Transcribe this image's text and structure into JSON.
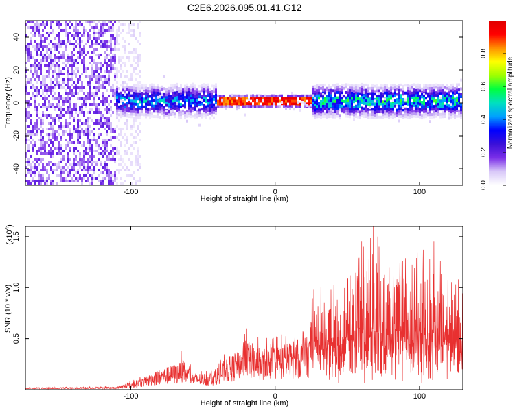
{
  "figure_title": "C2E6.2026.095.01.41.G12",
  "chart_data": [
    {
      "type": "heatmap",
      "title": "C2E6.2026.095.01.41.G12",
      "xlabel": "Height of straight line (km)",
      "ylabel": "Frequency (Hz)",
      "xlim": [
        -173,
        130
      ],
      "ylim": [
        -50,
        50
      ],
      "xticks": [
        -100,
        0,
        100
      ],
      "yticks": [
        -40,
        -20,
        0,
        20,
        40
      ],
      "xtick_labels": [
        "-100",
        "0",
        "100"
      ],
      "ytick_labels": [
        "-40",
        "-20",
        "0",
        "20",
        "40"
      ],
      "colorbar": {
        "label": "Normalized spectral amplitude",
        "range": [
          0.0,
          1.0
        ],
        "ticks": [
          0.0,
          0.2,
          0.4,
          0.6,
          0.8
        ],
        "tick_labels": [
          "0.0",
          "0.2",
          "0.4",
          "0.6",
          "0.8"
        ],
        "colormap": [
          "#ffffff",
          "#d8c8f8",
          "#7a2ee8",
          "#3a10d8",
          "#0000ff",
          "#00a0ff",
          "#00e0c0",
          "#00ff40",
          "#a0ff00",
          "#ffff00",
          "#ff9000",
          "#ff0000",
          "#e00000"
        ]
      },
      "regions": [
        {
          "x": [
            -173,
            -110
          ],
          "freq_spread": 50,
          "peak_amplitude": 0.2,
          "note": "broadband noise"
        },
        {
          "x": [
            -110,
            -93
          ],
          "freq_spread": 50,
          "peak_amplitude": 0.08,
          "note": "faint broadband"
        },
        {
          "x": [
            -110,
            -40
          ],
          "center_freq": 1,
          "band_halfwidth": 8,
          "peak_amplitude": 0.45
        },
        {
          "x": [
            -40,
            25
          ],
          "center_freq": 1,
          "band_halfwidth": 3,
          "peak_amplitude": 1.0
        },
        {
          "x": [
            25,
            130
          ],
          "center_freq": 1,
          "band_halfwidth": 8,
          "peak_amplitude": 0.55
        }
      ],
      "line": {
        "x": [
          -40,
          25
        ],
        "freq": 1
      }
    },
    {
      "type": "line",
      "xlabel": "Height of straight line (km)",
      "ylabel": "SNR (10 * v/v)",
      "y_multiplier": "(x10^4)",
      "y_multiplier_base": "(x10",
      "y_multiplier_exp": "4",
      "y_multiplier_close": ")",
      "xlim": [
        -173,
        130
      ],
      "ylim": [
        0,
        1.6
      ],
      "xticks": [
        -100,
        0,
        100
      ],
      "yticks": [
        0.5,
        1.0,
        1.5
      ],
      "xtick_labels": [
        "-100",
        "0",
        "100"
      ],
      "ytick_labels": [
        "0.5",
        "1.0",
        "1.5"
      ],
      "color": "#e83030",
      "series": [
        {
          "name": "SNR",
          "envelope": [
            {
              "x": -173,
              "y": 0.02
            },
            {
              "x": -110,
              "y": 0.03
            },
            {
              "x": -100,
              "y": 0.08
            },
            {
              "x": -90,
              "y": 0.14
            },
            {
              "x": -80,
              "y": 0.22
            },
            {
              "x": -65,
              "y": 0.3
            },
            {
              "x": -55,
              "y": 0.18
            },
            {
              "x": -45,
              "y": 0.18
            },
            {
              "x": -35,
              "y": 0.32
            },
            {
              "x": -25,
              "y": 0.42
            },
            {
              "x": -20,
              "y": 0.55
            },
            {
              "x": -10,
              "y": 0.45
            },
            {
              "x": 0,
              "y": 0.48
            },
            {
              "x": 10,
              "y": 0.52
            },
            {
              "x": 24,
              "y": 0.58
            },
            {
              "x": 25,
              "y": 1.0
            },
            {
              "x": 40,
              "y": 1.05
            },
            {
              "x": 55,
              "y": 1.25
            },
            {
              "x": 68,
              "y": 1.6
            },
            {
              "x": 80,
              "y": 1.3
            },
            {
              "x": 100,
              "y": 1.35
            },
            {
              "x": 110,
              "y": 1.45
            },
            {
              "x": 120,
              "y": 1.3
            },
            {
              "x": 130,
              "y": 1.15
            }
          ],
          "peaks": [
            {
              "x": 68,
              "y": 1.6
            },
            {
              "x": 110,
              "y": 1.45
            },
            {
              "x": 60,
              "y": 1.45
            },
            {
              "x": -20,
              "y": 0.6
            },
            {
              "x": -65,
              "y": 0.38
            }
          ]
        }
      ]
    }
  ]
}
